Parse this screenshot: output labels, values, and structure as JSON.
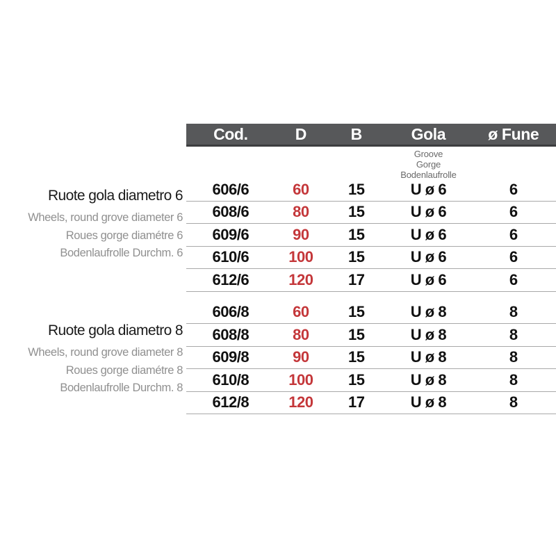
{
  "colors": {
    "header_bg": "#57585a",
    "header_edge": "#3c3d3f",
    "header_text": "#ffffff",
    "diameter_red": "#c4373a",
    "row_line": "#a8a8a8",
    "gola_note_text": "#6a6a6a",
    "label_title_text": "#1a1a1a",
    "label_sub_text": "#909090",
    "background": "#ffffff"
  },
  "table": {
    "columns": [
      "Cod.",
      "D",
      "B",
      "Gola",
      "ø Fune"
    ],
    "gola_subheader": [
      "Groove",
      "Gorge",
      "Bodenlaufrolle"
    ],
    "groups": [
      {
        "title": "Ruote gola diametro 6",
        "subtitles": [
          "Wheels, round grove diameter 6",
          "Roues gorge diamétre 6",
          "Bodenlaufrolle Durchm. 6"
        ],
        "rows": [
          {
            "cod": "606/6",
            "d": "60",
            "b": "15",
            "gola": "U ø 6",
            "fune": "6"
          },
          {
            "cod": "608/6",
            "d": "80",
            "b": "15",
            "gola": "U ø 6",
            "fune": "6"
          },
          {
            "cod": "609/6",
            "d": "90",
            "b": "15",
            "gola": "U ø 6",
            "fune": "6"
          },
          {
            "cod": "610/6",
            "d": "100",
            "b": "15",
            "gola": "U ø 6",
            "fune": "6"
          },
          {
            "cod": "612/6",
            "d": "120",
            "b": "17",
            "gola": "U ø 6",
            "fune": "6"
          }
        ]
      },
      {
        "title": "Ruote gola diametro 8",
        "subtitles": [
          "Wheels, round grove diameter 8",
          "Roues gorge diamétre 8",
          "Bodenlaufrolle Durchm. 8"
        ],
        "rows": [
          {
            "cod": "606/8",
            "d": "60",
            "b": "15",
            "gola": "U ø 8",
            "fune": "8"
          },
          {
            "cod": "608/8",
            "d": "80",
            "b": "15",
            "gola": "U ø 8",
            "fune": "8"
          },
          {
            "cod": "609/8",
            "d": "90",
            "b": "15",
            "gola": "U ø 8",
            "fune": "8"
          },
          {
            "cod": "610/8",
            "d": "100",
            "b": "15",
            "gola": "U ø 8",
            "fune": "8"
          },
          {
            "cod": "612/8",
            "d": "120",
            "b": "17",
            "gola": "U ø 8",
            "fune": "8"
          }
        ]
      }
    ]
  }
}
